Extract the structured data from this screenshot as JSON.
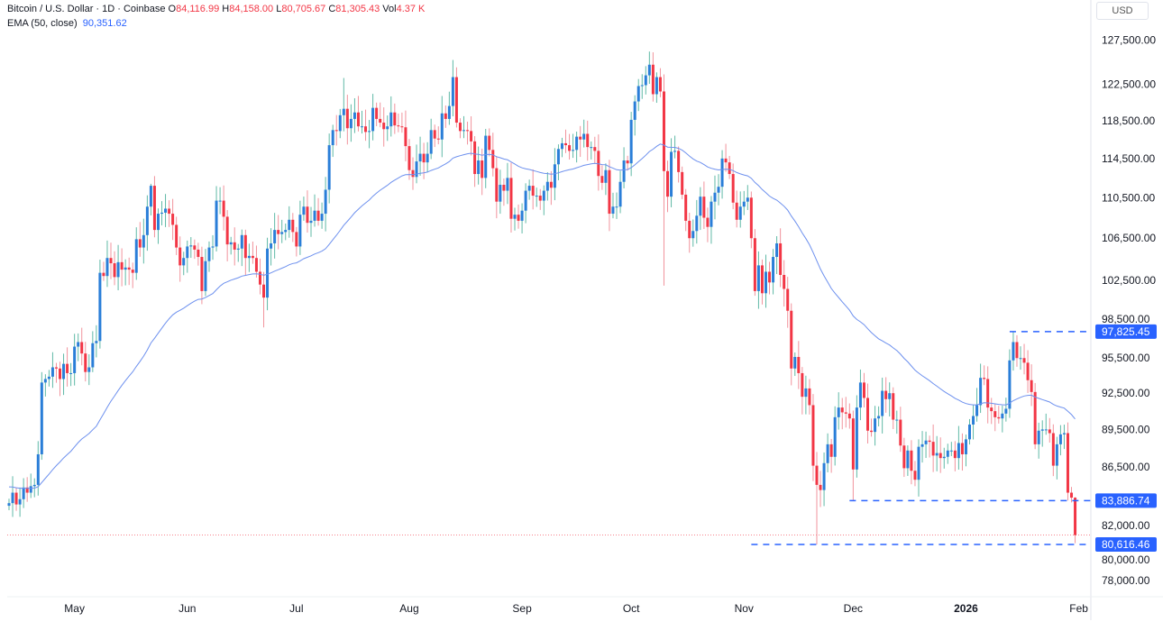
{
  "legend": {
    "symbol": "Bitcoin / U.S. Dollar · 1D · Coinbase",
    "o_label": "O",
    "o": "84,116.99",
    "h_label": "H",
    "h": "84,158.00",
    "l_label": "L",
    "l": "80,705.67",
    "c_label": "C",
    "c": "81,305.43",
    "vol_label": "Vol",
    "vol": "4.37 K",
    "ema_label": "EMA (50, close)",
    "ema_value": "90,351.62"
  },
  "currency": "USD",
  "colors": {
    "up": "#2a7ed8",
    "up_wick": "#5fb9a6",
    "down": "#f23645",
    "down_wick": "#f1939c",
    "ema": "#6d90ee",
    "tag": "#2962ff"
  },
  "chart_data": {
    "type": "candlestick",
    "title": "Bitcoin / U.S. Dollar · 1D · Coinbase",
    "scale": "log",
    "ylim": [
      76500,
      129500
    ],
    "start_date": "2025-04-13",
    "end_date": "2026-01-31",
    "first_open": 83500,
    "closes": [
      83700,
      84500,
      83600,
      84000,
      84900,
      84500,
      85000,
      85100,
      87500,
      93400,
      93700,
      93900,
      94700,
      94600,
      93700,
      95000,
      94200,
      94200,
      96500,
      96900,
      95900,
      94300,
      94700,
      96800,
      97000,
      103200,
      102900,
      104600,
      104100,
      102800,
      104200,
      103500,
      103700,
      103500,
      103200,
      106400,
      105600,
      106800,
      109600,
      111700,
      107300,
      108900,
      109000,
      109400,
      108900,
      107800,
      105600,
      103900,
      104600,
      105700,
      105800,
      105400,
      104700,
      101500,
      104300,
      105600,
      105700,
      110200,
      110200,
      108600,
      105900,
      106100,
      105400,
      105500,
      106800,
      104600,
      104800,
      104600,
      103300,
      102100,
      100900,
      105500,
      106000,
      107300,
      106900,
      107100,
      107300,
      108300,
      107100,
      105700,
      108800,
      109600,
      108000,
      108200,
      109200,
      108200,
      108900,
      111300,
      115900,
      117500,
      117400,
      119100,
      119800,
      117700,
      118700,
      119400,
      117900,
      117900,
      117300,
      117400,
      119900,
      118700,
      118300,
      117600,
      117900,
      119400,
      118000,
      117900,
      117800,
      115800,
      113300,
      112600,
      114200,
      115000,
      114100,
      115000,
      117500,
      116600,
      116500,
      119300,
      118700,
      120100,
      123300,
      118300,
      117400,
      117500,
      117400,
      116300,
      112900,
      114300,
      112500,
      116900,
      115400,
      113500,
      110100,
      111800,
      111200,
      112500,
      108400,
      108800,
      108200,
      109200,
      111200,
      111700,
      110700,
      110700,
      110200,
      111200,
      112100,
      111500,
      113900,
      115500,
      116100,
      115900,
      115300,
      115400,
      116800,
      116500,
      117100,
      115700,
      115700,
      115300,
      112700,
      112000,
      113300,
      108900,
      109600,
      109600,
      112100,
      114300,
      114000,
      118600,
      120600,
      122300,
      122400,
      123500,
      124700,
      121400,
      123300,
      121700,
      113200,
      110600,
      115200,
      115300,
      113100,
      110800,
      108200,
      106500,
      107200,
      108700,
      110600,
      108500,
      107600,
      110100,
      111000,
      111600,
      114500,
      114100,
      112900,
      110000,
      108300,
      109600,
      110100,
      110500,
      106500,
      101500,
      103900,
      101300,
      103300,
      102300,
      104700,
      106000,
      103000,
      101700,
      99700,
      94600,
      95600,
      94200,
      92200,
      92900,
      91500,
      86600,
      85100,
      84700,
      86800,
      88300,
      87300,
      90500,
      91300,
      90900,
      90800,
      90400,
      86300,
      91300,
      93400,
      92100,
      89400,
      89300,
      90400,
      90600,
      92700,
      92000,
      92500,
      90300,
      90300,
      88200,
      86400,
      87800,
      86200,
      85500,
      88100,
      88300,
      88600,
      88500,
      87400,
      87600,
      87200,
      87300,
      87800,
      87800,
      87200,
      88400,
      87500,
      88700,
      89900,
      90600,
      91500,
      93800,
      93700,
      91300,
      91000,
      90500,
      90400,
      90800,
      91200,
      95300,
      96900,
      95500,
      95500,
      95100,
      93600,
      92600,
      88300,
      89400,
      89500,
      89500,
      89200,
      86600,
      88300,
      89100,
      89200,
      84500,
      84116.99,
      81305.43
    ],
    "wick_overrides": {
      "2025-05-22": {
        "h": 111900
      },
      "2025-06-22": {
        "l": 98200
      },
      "2025-07-14": {
        "h": 123200
      },
      "2025-08-14": {
        "h": 124400
      },
      "2025-10-06": {
        "h": 126200
      },
      "2025-10-10": {
        "l": 102000
      },
      "2025-11-21": {
        "l": 80616.46
      },
      "2025-12-01": {
        "l": 83886.74
      },
      "2026-01-14": {
        "h": 97825.45
      },
      "2026-01-31": {
        "h": 84158,
        "l": 80705.67
      }
    },
    "ema": {
      "period": 50,
      "seed": 85000,
      "last_value": 90351.62
    },
    "y_ticks": [
      "127,500.00",
      "122,500.00",
      "118,500.00",
      "114,500.00",
      "110,500.00",
      "106,500.00",
      "102,500.00",
      "98,500.00",
      "95,500.00",
      "92,500.00",
      "89,500.00",
      "86,500.00",
      "82,000.00",
      "80,000.00",
      "78,000.00"
    ],
    "x_ticks": [
      {
        "label": "May",
        "date": "2025-05-01"
      },
      {
        "label": "Jun",
        "date": "2025-06-01"
      },
      {
        "label": "Jul",
        "date": "2025-07-01"
      },
      {
        "label": "Aug",
        "date": "2025-08-01"
      },
      {
        "label": "Sep",
        "date": "2025-09-01"
      },
      {
        "label": "Oct",
        "date": "2025-10-01"
      },
      {
        "label": "Nov",
        "date": "2025-11-01"
      },
      {
        "label": "Dec",
        "date": "2025-12-01"
      },
      {
        "label": "2026",
        "date": "2026-01-01",
        "bold": true
      },
      {
        "label": "Feb",
        "date": "2026-02-01"
      }
    ],
    "levels": [
      {
        "label": "97,825.45",
        "value": 97825.45,
        "from": "2026-01-14"
      },
      {
        "label": "83,886.74",
        "value": 83886.74,
        "from": "2025-12-01"
      },
      {
        "label": "80,616.46",
        "value": 80616.46,
        "from": "2025-11-04"
      }
    ],
    "last_price": 81305.43
  }
}
